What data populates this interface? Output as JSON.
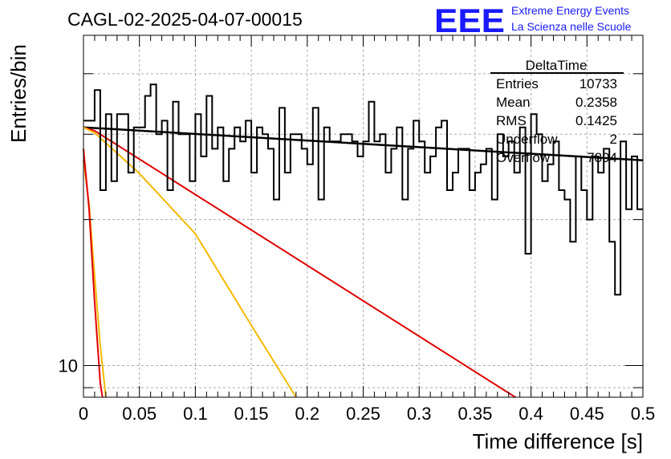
{
  "header": {
    "title": "CAGL-02-2025-04-07-00015",
    "logo_text": "EEE",
    "logo_line1": "Extreme Energy Events",
    "logo_line2": "La Scienza nelle Scuole"
  },
  "stats": {
    "name": "DeltaTime",
    "rows": [
      {
        "label": "Entries",
        "value": "10733"
      },
      {
        "label": "Mean",
        "value": "0.2358"
      },
      {
        "label": "RMS",
        "value": "0.1425"
      },
      {
        "label": "Underflow",
        "value": "2"
      },
      {
        "label": "Overflow",
        "value": "7894"
      }
    ]
  },
  "colors": {
    "hist": "#000000",
    "fit": "#000000",
    "red": "#e00000",
    "orange": "#f5b800",
    "logo": "#1a1aff",
    "grid": "#aaaaaa"
  },
  "chart_data": {
    "type": "step",
    "xlabel": "Time difference [s]",
    "ylabel": "Entries/bin",
    "xlim": [
      0,
      0.5
    ],
    "ylim": [
      8.6,
      48
    ],
    "yscale": "log",
    "grid": true,
    "x_ticks": [
      "0",
      "0.05",
      "0.1",
      "0.15",
      "0.2",
      "0.25",
      "0.3",
      "0.35",
      "0.4",
      "0.45",
      "0.5"
    ],
    "y_tick_labels": [
      {
        "value": 10,
        "label": "10"
      }
    ],
    "bin_width": 0.005,
    "hist_values": [
      32,
      32,
      37,
      23,
      33,
      24,
      33,
      33,
      25,
      31,
      31,
      36,
      38,
      30,
      32,
      23,
      35,
      30,
      30,
      24,
      33,
      27,
      36,
      28,
      31,
      24,
      28,
      31,
      29,
      32,
      25,
      31,
      30,
      28,
      22,
      34,
      25,
      30,
      30,
      28,
      26,
      34,
      22,
      31,
      29,
      29,
      30,
      30,
      29,
      27,
      29,
      35,
      29,
      30,
      25,
      28,
      31,
      22,
      28,
      32,
      29,
      25,
      27,
      31,
      32,
      23,
      25,
      28,
      28,
      23,
      25,
      26,
      28,
      22,
      30,
      27,
      29,
      25,
      31,
      17,
      33,
      30,
      24,
      26,
      29,
      23,
      22,
      18,
      27,
      23,
      20,
      27,
      25,
      28,
      18,
      14,
      29,
      21,
      27,
      21
    ],
    "fit_lines": [
      {
        "color": "black",
        "points": [
          [
            0,
            31.0
          ],
          [
            0.5,
            26.5
          ]
        ]
      },
      {
        "color": "red",
        "points": [
          [
            0,
            31.0
          ],
          [
            0.01,
            30.5
          ],
          [
            0.386,
            8.6
          ]
        ]
      },
      {
        "color": "orange",
        "points": [
          [
            0,
            31.0
          ],
          [
            0.01,
            30.2
          ],
          [
            0.05,
            24.9
          ],
          [
            0.1,
            18.7
          ],
          [
            0.15,
            12.1
          ],
          [
            0.19,
            8.6
          ]
        ]
      },
      {
        "color": "orange",
        "points": [
          [
            0,
            26.5
          ],
          [
            0.005,
            21.5
          ],
          [
            0.01,
            15.3
          ],
          [
            0.015,
            11.0
          ],
          [
            0.02,
            8.6
          ]
        ]
      },
      {
        "color": "red",
        "points": [
          [
            0,
            28.0
          ],
          [
            0.005,
            21.0
          ],
          [
            0.01,
            13.5
          ],
          [
            0.015,
            9.2
          ],
          [
            0.017,
            8.6
          ]
        ]
      }
    ]
  }
}
